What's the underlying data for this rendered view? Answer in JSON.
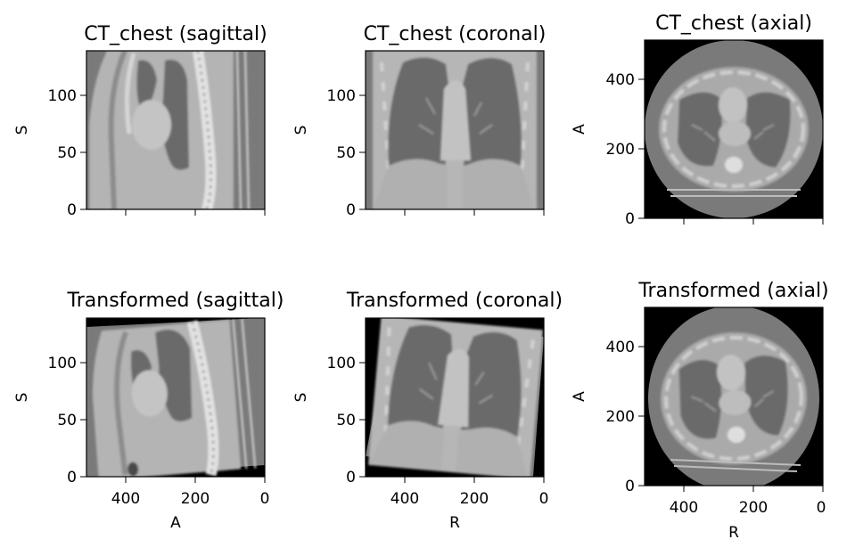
{
  "figure": {
    "panels": [
      {
        "title": "CT_chest (sagittal)",
        "xlabel": "",
        "ylabel": "S",
        "yticks": [
          "0",
          "50",
          "100"
        ],
        "xticks": [
          "",
          "",
          ""
        ]
      },
      {
        "title": "CT_chest (coronal)",
        "xlabel": "",
        "ylabel": "S",
        "yticks": [
          "0",
          "50",
          "100"
        ],
        "xticks": [
          "",
          "",
          ""
        ]
      },
      {
        "title": "CT_chest (axial)",
        "xlabel": "",
        "ylabel": "A",
        "yticks": [
          "0",
          "200",
          "400"
        ],
        "xticks": [
          "",
          "",
          ""
        ]
      },
      {
        "title": "Transformed (sagittal)",
        "xlabel": "A",
        "ylabel": "S",
        "yticks": [
          "0",
          "50",
          "100"
        ],
        "xticks": [
          "400",
          "200",
          "0"
        ]
      },
      {
        "title": "Transformed (coronal)",
        "xlabel": "R",
        "ylabel": "S",
        "yticks": [
          "0",
          "50",
          "100"
        ],
        "xticks": [
          "400",
          "200",
          "0"
        ]
      },
      {
        "title": "Transformed (axial)",
        "xlabel": "R",
        "ylabel": "A",
        "yticks": [
          "0",
          "200",
          "400"
        ],
        "xticks": [
          "400",
          "200",
          "0"
        ]
      }
    ]
  }
}
